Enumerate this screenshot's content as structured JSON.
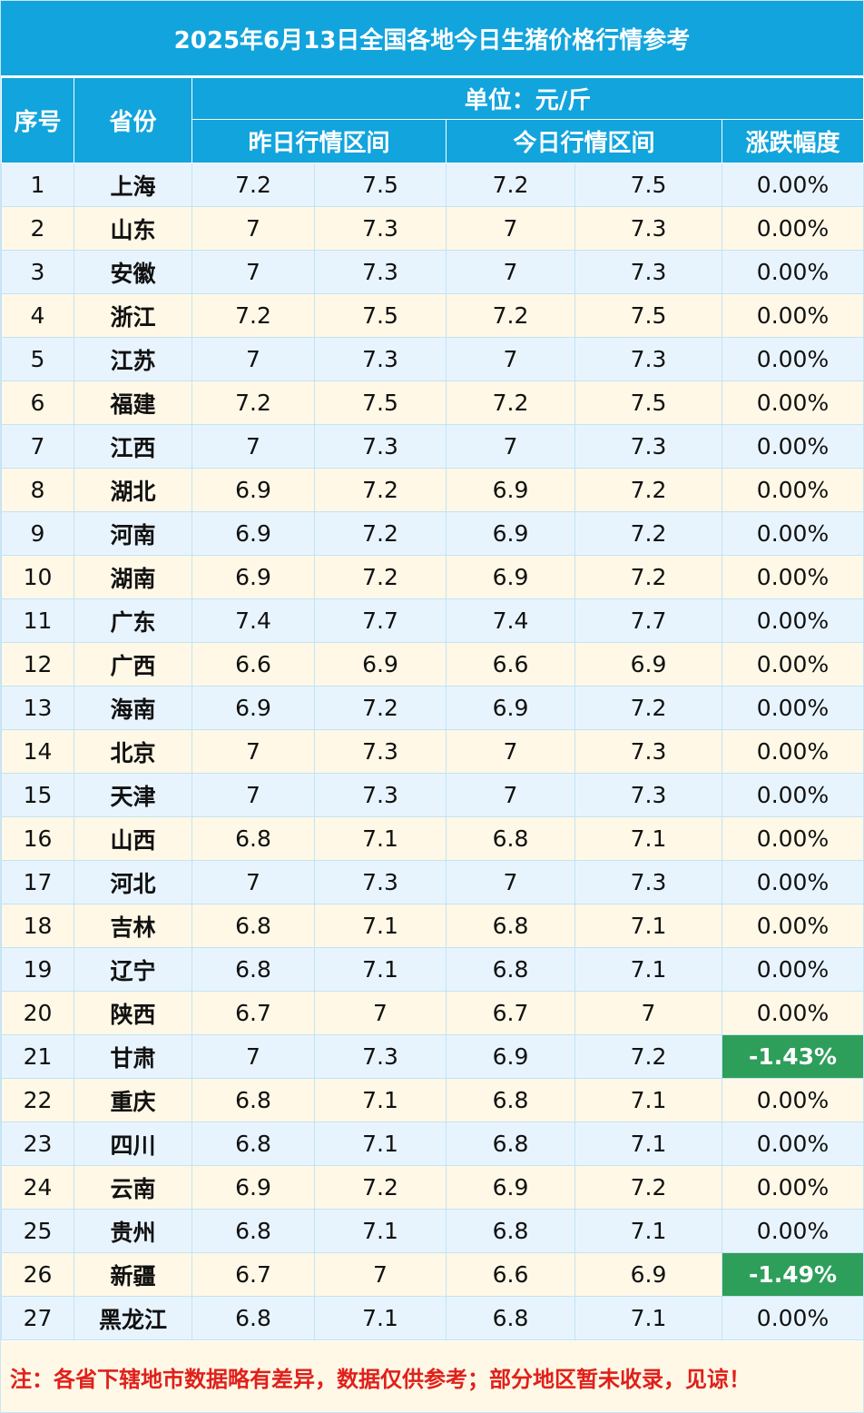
{
  "title": "2025年6月13日全国各地今日生猪价格行情参考",
  "headers": {
    "index": "序号",
    "province": "省份",
    "unit": "单位：元/斤",
    "yesterday": "昨日行情区间",
    "today": "今日行情区间",
    "change": "涨跌幅度"
  },
  "rows": [
    {
      "idx": "1",
      "province": "上海",
      "y_low": "7.2",
      "y_high": "7.5",
      "t_low": "7.2",
      "t_high": "7.5",
      "change": "0.00%"
    },
    {
      "idx": "2",
      "province": "山东",
      "y_low": "7",
      "y_high": "7.3",
      "t_low": "7",
      "t_high": "7.3",
      "change": "0.00%"
    },
    {
      "idx": "3",
      "province": "安徽",
      "y_low": "7",
      "y_high": "7.3",
      "t_low": "7",
      "t_high": "7.3",
      "change": "0.00%"
    },
    {
      "idx": "4",
      "province": "浙江",
      "y_low": "7.2",
      "y_high": "7.5",
      "t_low": "7.2",
      "t_high": "7.5",
      "change": "0.00%"
    },
    {
      "idx": "5",
      "province": "江苏",
      "y_low": "7",
      "y_high": "7.3",
      "t_low": "7",
      "t_high": "7.3",
      "change": "0.00%"
    },
    {
      "idx": "6",
      "province": "福建",
      "y_low": "7.2",
      "y_high": "7.5",
      "t_low": "7.2",
      "t_high": "7.5",
      "change": "0.00%"
    },
    {
      "idx": "7",
      "province": "江西",
      "y_low": "7",
      "y_high": "7.3",
      "t_low": "7",
      "t_high": "7.3",
      "change": "0.00%"
    },
    {
      "idx": "8",
      "province": "湖北",
      "y_low": "6.9",
      "y_high": "7.2",
      "t_low": "6.9",
      "t_high": "7.2",
      "change": "0.00%"
    },
    {
      "idx": "9",
      "province": "河南",
      "y_low": "6.9",
      "y_high": "7.2",
      "t_low": "6.9",
      "t_high": "7.2",
      "change": "0.00%"
    },
    {
      "idx": "10",
      "province": "湖南",
      "y_low": "6.9",
      "y_high": "7.2",
      "t_low": "6.9",
      "t_high": "7.2",
      "change": "0.00%"
    },
    {
      "idx": "11",
      "province": "广东",
      "y_low": "7.4",
      "y_high": "7.7",
      "t_low": "7.4",
      "t_high": "7.7",
      "change": "0.00%"
    },
    {
      "idx": "12",
      "province": "广西",
      "y_low": "6.6",
      "y_high": "6.9",
      "t_low": "6.6",
      "t_high": "6.9",
      "change": "0.00%"
    },
    {
      "idx": "13",
      "province": "海南",
      "y_low": "6.9",
      "y_high": "7.2",
      "t_low": "6.9",
      "t_high": "7.2",
      "change": "0.00%"
    },
    {
      "idx": "14",
      "province": "北京",
      "y_low": "7",
      "y_high": "7.3",
      "t_low": "7",
      "t_high": "7.3",
      "change": "0.00%"
    },
    {
      "idx": "15",
      "province": "天津",
      "y_low": "7",
      "y_high": "7.3",
      "t_low": "7",
      "t_high": "7.3",
      "change": "0.00%"
    },
    {
      "idx": "16",
      "province": "山西",
      "y_low": "6.8",
      "y_high": "7.1",
      "t_low": "6.8",
      "t_high": "7.1",
      "change": "0.00%"
    },
    {
      "idx": "17",
      "province": "河北",
      "y_low": "7",
      "y_high": "7.3",
      "t_low": "7",
      "t_high": "7.3",
      "change": "0.00%"
    },
    {
      "idx": "18",
      "province": "吉林",
      "y_low": "6.8",
      "y_high": "7.1",
      "t_low": "6.8",
      "t_high": "7.1",
      "change": "0.00%"
    },
    {
      "idx": "19",
      "province": "辽宁",
      "y_low": "6.8",
      "y_high": "7.1",
      "t_low": "6.8",
      "t_high": "7.1",
      "change": "0.00%"
    },
    {
      "idx": "20",
      "province": "陕西",
      "y_low": "6.7",
      "y_high": "7",
      "t_low": "6.7",
      "t_high": "7",
      "change": "0.00%"
    },
    {
      "idx": "21",
      "province": "甘肃",
      "y_low": "7",
      "y_high": "7.3",
      "t_low": "6.9",
      "t_high": "7.2",
      "change": "-1.43%"
    },
    {
      "idx": "22",
      "province": "重庆",
      "y_low": "6.8",
      "y_high": "7.1",
      "t_low": "6.8",
      "t_high": "7.1",
      "change": "0.00%"
    },
    {
      "idx": "23",
      "province": "四川",
      "y_low": "6.8",
      "y_high": "7.1",
      "t_low": "6.8",
      "t_high": "7.1",
      "change": "0.00%"
    },
    {
      "idx": "24",
      "province": "云南",
      "y_low": "6.9",
      "y_high": "7.2",
      "t_low": "6.9",
      "t_high": "7.2",
      "change": "0.00%"
    },
    {
      "idx": "25",
      "province": "贵州",
      "y_low": "6.8",
      "y_high": "7.1",
      "t_low": "6.8",
      "t_high": "7.1",
      "change": "0.00%"
    },
    {
      "idx": "26",
      "province": "新疆",
      "y_low": "6.7",
      "y_high": "7",
      "t_low": "6.6",
      "t_high": "6.9",
      "change": "-1.49%"
    },
    {
      "idx": "27",
      "province": "黑龙江",
      "y_low": "6.8",
      "y_high": "7.1",
      "t_low": "6.8",
      "t_high": "7.1",
      "change": "0.00%"
    }
  ],
  "note": "注：各省下辖地市数据略有差异，数据仅供参考；部分地区暂未收录，见谅！",
  "colors": {
    "header": "#12a4dc",
    "row_blue": "#e8f4fd",
    "row_cream": "#fff8e6",
    "decline": "#2e9e5b",
    "note_text": "#e0201b"
  }
}
